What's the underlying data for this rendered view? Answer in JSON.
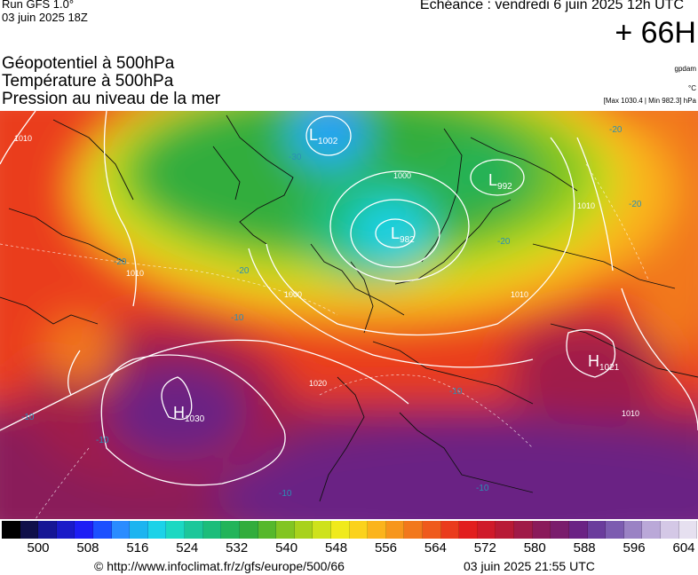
{
  "header": {
    "run": "Run GFS 1.0°",
    "run_date": "03 juin 2025 18Z",
    "echeance": "Echéance : vendredi 6 juin 2025 12h UTC",
    "lead_time": "+ 66H",
    "params": [
      "Géopotentiel à 500hPa",
      "Température à 500hPa",
      "Pression au niveau de la mer"
    ],
    "units": [
      "gpdam",
      "°C",
      "[Max 1030.4 | Min 982.3] hPa"
    ]
  },
  "map": {
    "pressure_centers": [
      {
        "type": "L",
        "value": "1002"
      },
      {
        "type": "L",
        "value": "992"
      },
      {
        "type": "L",
        "value": "982"
      },
      {
        "type": "H",
        "value": "1030"
      },
      {
        "type": "H",
        "value": "1021"
      }
    ],
    "isobar_labels": [
      "1010",
      "1000",
      "1000",
      "1010",
      "1020",
      "1010",
      "1010",
      "1010"
    ],
    "temperature_labels": [
      "-30",
      "-20",
      "-20",
      "-20",
      "-20",
      "-10",
      "-10",
      "-10",
      "-10",
      "-10",
      "-10",
      "-20"
    ]
  },
  "legend": {
    "colors": [
      "#000000",
      "#10104a",
      "#161695",
      "#1a1ac8",
      "#1e1ef5",
      "#1c50ff",
      "#2a8cff",
      "#1cb4f0",
      "#1cd2e8",
      "#1cd8c2",
      "#1cc79a",
      "#1cbd7a",
      "#22b45a",
      "#32ad3c",
      "#56b82c",
      "#82c522",
      "#a8d21c",
      "#cee21c",
      "#f0ea1c",
      "#fbd21c",
      "#fbb41c",
      "#f7961c",
      "#f2781c",
      "#ef5a1c",
      "#ea3c1c",
      "#e21e1e",
      "#cf1a2a",
      "#b81a36",
      "#a01a48",
      "#8a1a5a",
      "#7a1c6c",
      "#6a2284",
      "#6a3c9c",
      "#7c5cb0",
      "#9a82c4",
      "#baa8d8",
      "#d4c8e6",
      "#e6e0f0"
    ],
    "ticks": [
      "500",
      "508",
      "516",
      "524",
      "532",
      "540",
      "548",
      "556",
      "564",
      "572",
      "580",
      "588",
      "596",
      "604"
    ]
  },
  "footer": {
    "url": "© http://www.infoclimat.fr/z/gfs/europe/500/66",
    "date": "03 juin 2025 21:55 UTC"
  }
}
